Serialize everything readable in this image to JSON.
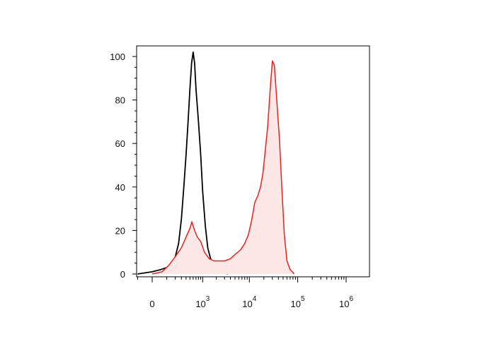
{
  "chart_data": {
    "type": "area",
    "title": "",
    "xlabel": "",
    "ylabel": "",
    "y_ticks": [
      0,
      20,
      40,
      60,
      80,
      100
    ],
    "ylim": [
      0,
      105
    ],
    "x_ticks": [
      {
        "base": "0",
        "exp": "",
        "value": 0
      },
      {
        "base": "10",
        "exp": "3",
        "value": 1000
      },
      {
        "base": "10",
        "exp": "4",
        "value": 10000
      },
      {
        "base": "10",
        "exp": "5",
        "value": 100000
      },
      {
        "base": "10",
        "exp": "6",
        "value": 1000000
      }
    ],
    "x_scale": "biexponential",
    "grid": false,
    "legend": "none",
    "series": [
      {
        "style": "line",
        "color": "#000000",
        "points": [
          [
            -100,
            0
          ],
          [
            0,
            1
          ],
          [
            50,
            2
          ],
          [
            100,
            3
          ],
          [
            150,
            5
          ],
          [
            200,
            8
          ],
          [
            250,
            14
          ],
          [
            300,
            25
          ],
          [
            350,
            40
          ],
          [
            400,
            55
          ],
          [
            450,
            70
          ],
          [
            500,
            85
          ],
          [
            550,
            97
          ],
          [
            600,
            102
          ],
          [
            650,
            97
          ],
          [
            700,
            85
          ],
          [
            800,
            70
          ],
          [
            900,
            55
          ],
          [
            1000,
            38
          ],
          [
            1150,
            22
          ],
          [
            1300,
            12
          ],
          [
            1500,
            7
          ],
          [
            1800,
            5
          ],
          [
            2200,
            3
          ],
          [
            2800,
            1
          ],
          [
            3500,
            0
          ]
        ]
      },
      {
        "style": "filled",
        "color": "#e8231f",
        "fill": "#fde6e6",
        "points": [
          [
            0,
            0
          ],
          [
            60,
            1
          ],
          [
            120,
            4
          ],
          [
            200,
            8
          ],
          [
            300,
            12
          ],
          [
            400,
            17
          ],
          [
            500,
            21
          ],
          [
            560,
            24
          ],
          [
            650,
            20
          ],
          [
            750,
            17
          ],
          [
            900,
            15
          ],
          [
            1100,
            10
          ],
          [
            1400,
            7
          ],
          [
            1800,
            6
          ],
          [
            2300,
            6
          ],
          [
            3000,
            6
          ],
          [
            4000,
            7
          ],
          [
            5000,
            9
          ],
          [
            6500,
            11
          ],
          [
            8000,
            14
          ],
          [
            9500,
            18
          ],
          [
            11000,
            24
          ],
          [
            13000,
            33
          ],
          [
            15000,
            36
          ],
          [
            17000,
            40
          ],
          [
            19000,
            46
          ],
          [
            21000,
            55
          ],
          [
            24000,
            68
          ],
          [
            27000,
            85
          ],
          [
            30000,
            98
          ],
          [
            33000,
            96
          ],
          [
            37000,
            80
          ],
          [
            42000,
            62
          ],
          [
            47000,
            40
          ],
          [
            53000,
            18
          ],
          [
            60000,
            6
          ],
          [
            70000,
            2
          ],
          [
            85000,
            0
          ]
        ]
      }
    ]
  }
}
